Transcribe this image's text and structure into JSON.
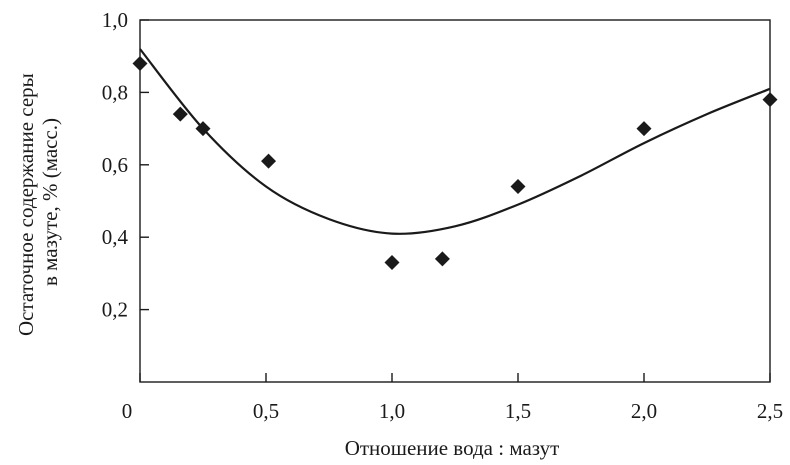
{
  "chart_data": {
    "type": "scatter",
    "xlabel": "Отношение вода : мазут",
    "ylabel_lines": [
      "Остаточное содержание серы",
      "в мазуте, % (масс.)"
    ],
    "xlim": [
      0,
      2.5
    ],
    "ylim": [
      0,
      1.0
    ],
    "x_ticks": [
      {
        "value": 0,
        "label": "0"
      },
      {
        "value": 0.5,
        "label": "0,5"
      },
      {
        "value": 1.0,
        "label": "1,0"
      },
      {
        "value": 1.5,
        "label": "1,5"
      },
      {
        "value": 2.0,
        "label": "2,0"
      },
      {
        "value": 2.5,
        "label": "2,5"
      }
    ],
    "y_ticks": [
      {
        "value": 0.2,
        "label": "0,2"
      },
      {
        "value": 0.4,
        "label": "0,4"
      },
      {
        "value": 0.6,
        "label": "0,6"
      },
      {
        "value": 0.8,
        "label": "0,8"
      },
      {
        "value": 1.0,
        "label": "1,0"
      }
    ],
    "grid": false,
    "series": [
      {
        "marker": "diamond",
        "color": "#1a1a1a",
        "points": [
          {
            "x": 0.0,
            "y": 0.88
          },
          {
            "x": 0.16,
            "y": 0.74
          },
          {
            "x": 0.25,
            "y": 0.7
          },
          {
            "x": 0.51,
            "y": 0.61
          },
          {
            "x": 1.0,
            "y": 0.33
          },
          {
            "x": 1.2,
            "y": 0.34
          },
          {
            "x": 1.5,
            "y": 0.54
          },
          {
            "x": 2.0,
            "y": 0.7
          },
          {
            "x": 2.5,
            "y": 0.78
          }
        ]
      },
      {
        "type": "line",
        "smooth": true,
        "color": "#1a1a1a",
        "points": [
          {
            "x": 0.0,
            "y": 0.92
          },
          {
            "x": 0.25,
            "y": 0.7
          },
          {
            "x": 0.5,
            "y": 0.54
          },
          {
            "x": 0.75,
            "y": 0.45
          },
          {
            "x": 1.0,
            "y": 0.41
          },
          {
            "x": 1.25,
            "y": 0.43
          },
          {
            "x": 1.5,
            "y": 0.49
          },
          {
            "x": 1.75,
            "y": 0.57
          },
          {
            "x": 2.0,
            "y": 0.66
          },
          {
            "x": 2.25,
            "y": 0.74
          },
          {
            "x": 2.5,
            "y": 0.81
          }
        ]
      }
    ]
  }
}
